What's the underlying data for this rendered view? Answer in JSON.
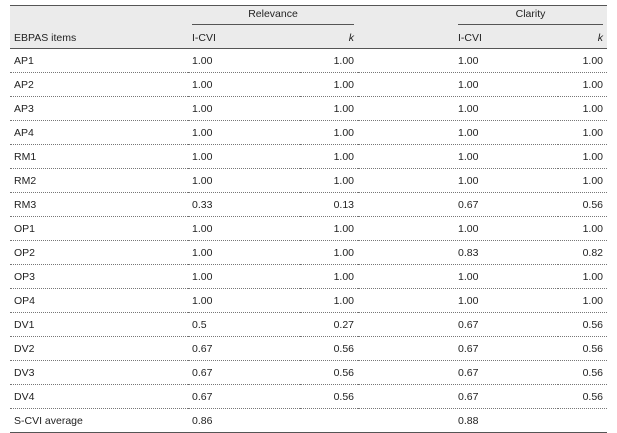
{
  "table": {
    "groups": [
      "Relevance",
      "Clarity"
    ],
    "header": [
      "EBPAS items",
      "I-CVI",
      "k",
      "I-CVI",
      "k"
    ],
    "rows": [
      [
        "AP1",
        "1.00",
        "1.00",
        "1.00",
        "1.00"
      ],
      [
        "AP2",
        "1.00",
        "1.00",
        "1.00",
        "1.00"
      ],
      [
        "AP3",
        "1.00",
        "1.00",
        "1.00",
        "1.00"
      ],
      [
        "AP4",
        "1.00",
        "1.00",
        "1.00",
        "1.00"
      ],
      [
        "RM1",
        "1.00",
        "1.00",
        "1.00",
        "1.00"
      ],
      [
        "RM2",
        "1.00",
        "1.00",
        "1.00",
        "1.00"
      ],
      [
        "RM3",
        "0.33",
        "0.13",
        "0.67",
        "0.56"
      ],
      [
        "OP1",
        "1.00",
        "1.00",
        "1.00",
        "1.00"
      ],
      [
        "OP2",
        "1.00",
        "1.00",
        "0.83",
        "0.82"
      ],
      [
        "OP3",
        "1.00",
        "1.00",
        "1.00",
        "1.00"
      ],
      [
        "OP4",
        "1.00",
        "1.00",
        "1.00",
        "1.00"
      ],
      [
        "DV1",
        "0.5",
        "0.27",
        "0.67",
        "0.56"
      ],
      [
        "DV2",
        "0.67",
        "0.56",
        "0.67",
        "0.56"
      ],
      [
        "DV3",
        "0.67",
        "0.56",
        "0.67",
        "0.56"
      ],
      [
        "DV4",
        "0.67",
        "0.56",
        "0.67",
        "0.56"
      ]
    ],
    "footer": [
      "S-CVI average",
      "0.86",
      "0.88"
    ]
  }
}
